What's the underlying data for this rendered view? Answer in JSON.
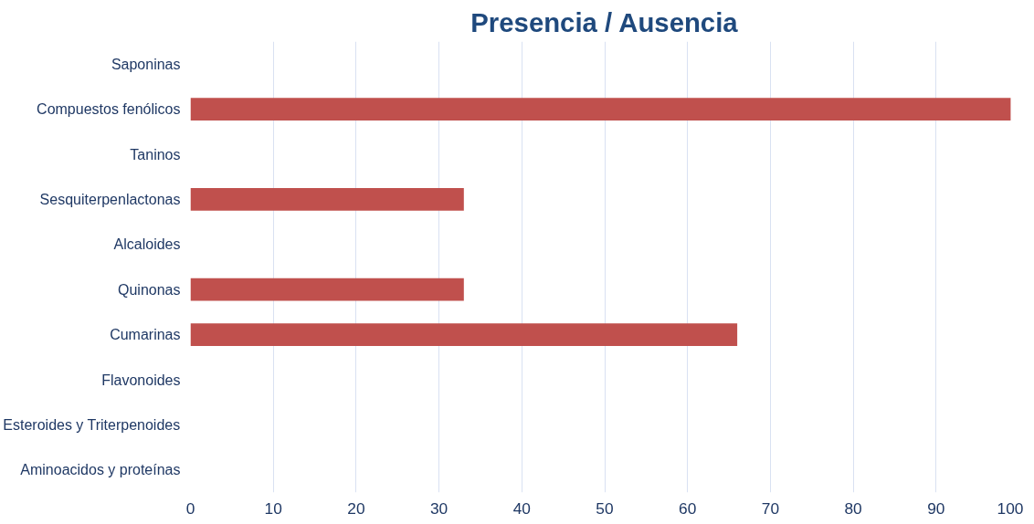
{
  "chart_data": {
    "type": "bar",
    "orientation": "horizontal",
    "title": "Presencia / Ausencia",
    "categories": [
      "Saponinas",
      "Compuestos fenólicos",
      "Taninos",
      "Sesquiterpenlactonas",
      "Alcaloides",
      "Quinonas",
      "Cumarinas",
      "Flavonoides",
      "Esteroides y Triterpenoides",
      "Aminoacidos y proteínas"
    ],
    "values": [
      0,
      99,
      0,
      33,
      0,
      33,
      66,
      0,
      0,
      0
    ],
    "color": "#c0504d",
    "xlim": [
      0,
      100
    ],
    "xticks": [
      0,
      10,
      20,
      30,
      40,
      50,
      60,
      70,
      80,
      90,
      100
    ],
    "grid": "x"
  }
}
